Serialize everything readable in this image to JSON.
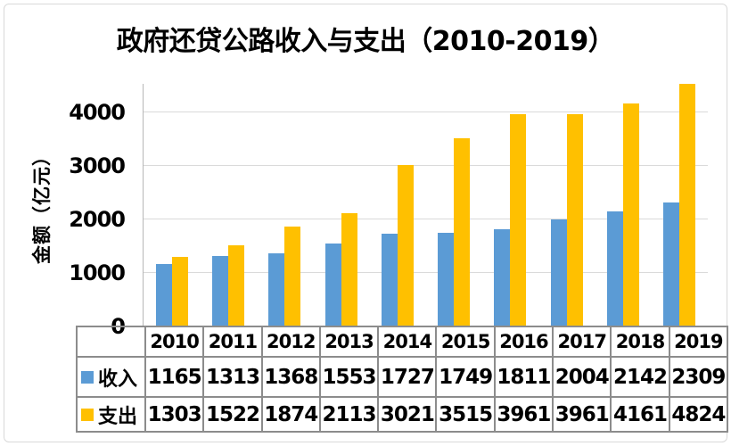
{
  "chart_data": {
    "type": "bar",
    "title": "政府还贷公路收入与支出（2010-2019）",
    "ylabel": "金额（亿元）",
    "xlabel": "",
    "categories": [
      "2010",
      "2011",
      "2012",
      "2013",
      "2014",
      "2015",
      "2016",
      "2017",
      "2018",
      "2019"
    ],
    "series": [
      {
        "name": "收入",
        "color": "#5B9BD5",
        "values": [
          1165,
          1313,
          1368,
          1553,
          1727,
          1749,
          1811,
          2004,
          2142,
          2309
        ]
      },
      {
        "name": "支出",
        "color": "#FFC000",
        "values": [
          1303,
          1522,
          1874,
          2113,
          3021,
          3515,
          3961,
          3961,
          4161,
          4824
        ]
      }
    ],
    "yticks": [
      0,
      1000,
      2000,
      3000,
      4000
    ],
    "ylim": [
      0,
      4533
    ],
    "grid": true,
    "legend_position": "data-table-left",
    "data_table": true
  },
  "colors": {
    "income": "#5B9BD5",
    "expense": "#FFC000",
    "gridline": "#dadada",
    "axis": "#8c8c8c",
    "frame_border": "#d9d9d9",
    "text": "#000000"
  }
}
